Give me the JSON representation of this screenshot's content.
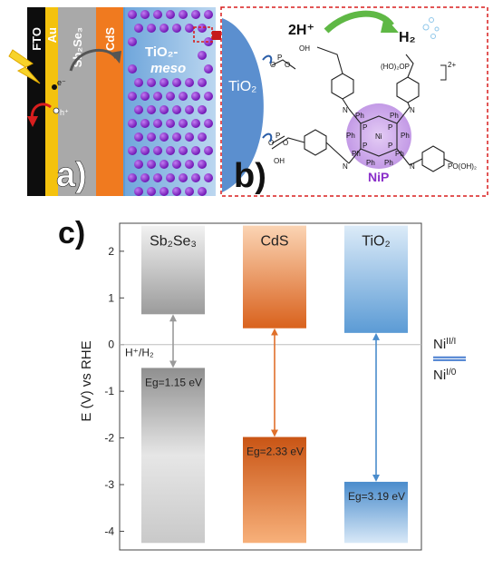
{
  "panel_a": {
    "label": "a)",
    "layers": [
      {
        "label": "FTO",
        "color": "#0d0d0d",
        "text_color": "#ffffff"
      },
      {
        "label": "Au",
        "color": "#f4c20d",
        "text_color": "#ffffff"
      },
      {
        "label": "Sb₂Se₃",
        "color": "#a9a9a9",
        "text_color": "#ffffff"
      },
      {
        "label": "CdS",
        "color": "#f07a1f",
        "text_color": "#ffffff"
      },
      {
        "label": "TiO₂",
        "color": "#5b9bd5",
        "text_color": "#ffffff"
      }
    ],
    "meso_label_line1": "TiO₂-",
    "meso_label_line2": "meso",
    "electron_label": "e⁻",
    "hole_label": "h⁺",
    "particle_color": "#8a1fd6"
  },
  "panel_b": {
    "label": "b)",
    "tio2_label": "TiO₂",
    "reaction_reactant": "2H⁺",
    "reaction_product": "H₂",
    "complex_label": "NiP",
    "charge_label": "2+",
    "metal_label": "Ni",
    "substituent_labels": [
      "Ph",
      "Ph",
      "Ph",
      "Ph",
      "Ph",
      "Ph",
      "Ph",
      "Ph"
    ],
    "phosphorus_labels": [
      "P",
      "P",
      "P",
      "P"
    ],
    "nitrogen_labels": [
      "N",
      "N",
      "N",
      "N"
    ],
    "phosphonate_labels": [
      "OH",
      "(HO)₂OP",
      "PO(OH)₂",
      "OH"
    ],
    "anchor_labels": [
      "O",
      "P",
      "O",
      "O",
      "P",
      "O"
    ]
  },
  "panel_c": {
    "label": "c)",
    "ylabel": "E (V) vs RHE",
    "reference_label": "H⁺/H₂",
    "ni_upper_label": "Ni",
    "ni_upper_sup": "II/I",
    "ni_lower_label": "Ni",
    "ni_lower_sup": "I/0",
    "ni_upper_value": 0.0,
    "ni_lower_value": -0.1
  },
  "chart_data": {
    "type": "bar",
    "ylabel": "E (V) vs RHE",
    "ylim": [
      -4.4,
      2.6
    ],
    "yticks": [
      2,
      1,
      0,
      -1,
      -2,
      -3,
      -4
    ],
    "reference_line": {
      "label": "H⁺/H₂",
      "value": 0
    },
    "series": [
      {
        "name": "Sb₂Se₃",
        "cb": 0.65,
        "vb": -0.5,
        "bandgap_label": "Eg=1.15 eV",
        "color": "#9e9e9e"
      },
      {
        "name": "CdS",
        "cb": 0.35,
        "vb": -1.98,
        "bandgap_label": "Eg=2.33 eV",
        "color": "#e0702a"
      },
      {
        "name": "TiO₂",
        "cb": 0.25,
        "vb": -2.94,
        "bandgap_label": "Eg=3.19 eV",
        "color": "#5b9bd5"
      }
    ]
  }
}
